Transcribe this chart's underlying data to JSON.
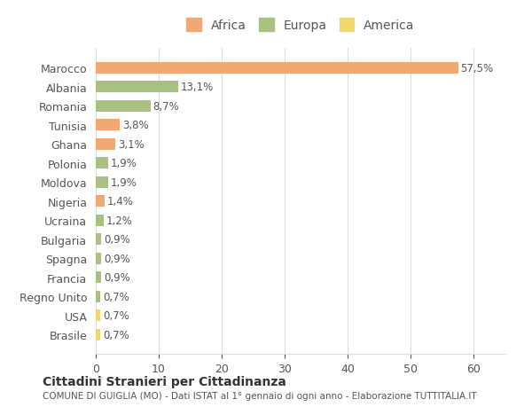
{
  "countries": [
    "Marocco",
    "Albania",
    "Romania",
    "Tunisia",
    "Ghana",
    "Polonia",
    "Moldova",
    "Nigeria",
    "Ucraina",
    "Bulgaria",
    "Spagna",
    "Francia",
    "Regno Unito",
    "USA",
    "Brasile"
  ],
  "values": [
    57.5,
    13.1,
    8.7,
    3.8,
    3.1,
    1.9,
    1.9,
    1.4,
    1.2,
    0.9,
    0.9,
    0.9,
    0.7,
    0.7,
    0.7
  ],
  "labels": [
    "57,5%",
    "13,1%",
    "8,7%",
    "3,8%",
    "3,1%",
    "1,9%",
    "1,9%",
    "1,4%",
    "1,2%",
    "0,9%",
    "0,9%",
    "0,9%",
    "0,7%",
    "0,7%",
    "0,7%"
  ],
  "continents": [
    "Africa",
    "Europa",
    "Europa",
    "Africa",
    "Africa",
    "Europa",
    "Europa",
    "Africa",
    "Europa",
    "Europa",
    "Europa",
    "Europa",
    "Europa",
    "America",
    "America"
  ],
  "colors": {
    "Africa": "#F0A875",
    "Europa": "#A8C080",
    "America": "#F0D870"
  },
  "xlim": [
    0,
    65
  ],
  "xticks": [
    0,
    10,
    20,
    30,
    40,
    50,
    60
  ],
  "title1": "Cittadini Stranieri per Cittadinanza",
  "title2": "COMUNE DI GUIGLIA (MO) - Dati ISTAT al 1° gennaio di ogni anno - Elaborazione TUTTITALIA.IT",
  "background_color": "#ffffff",
  "grid_color": "#dddddd"
}
